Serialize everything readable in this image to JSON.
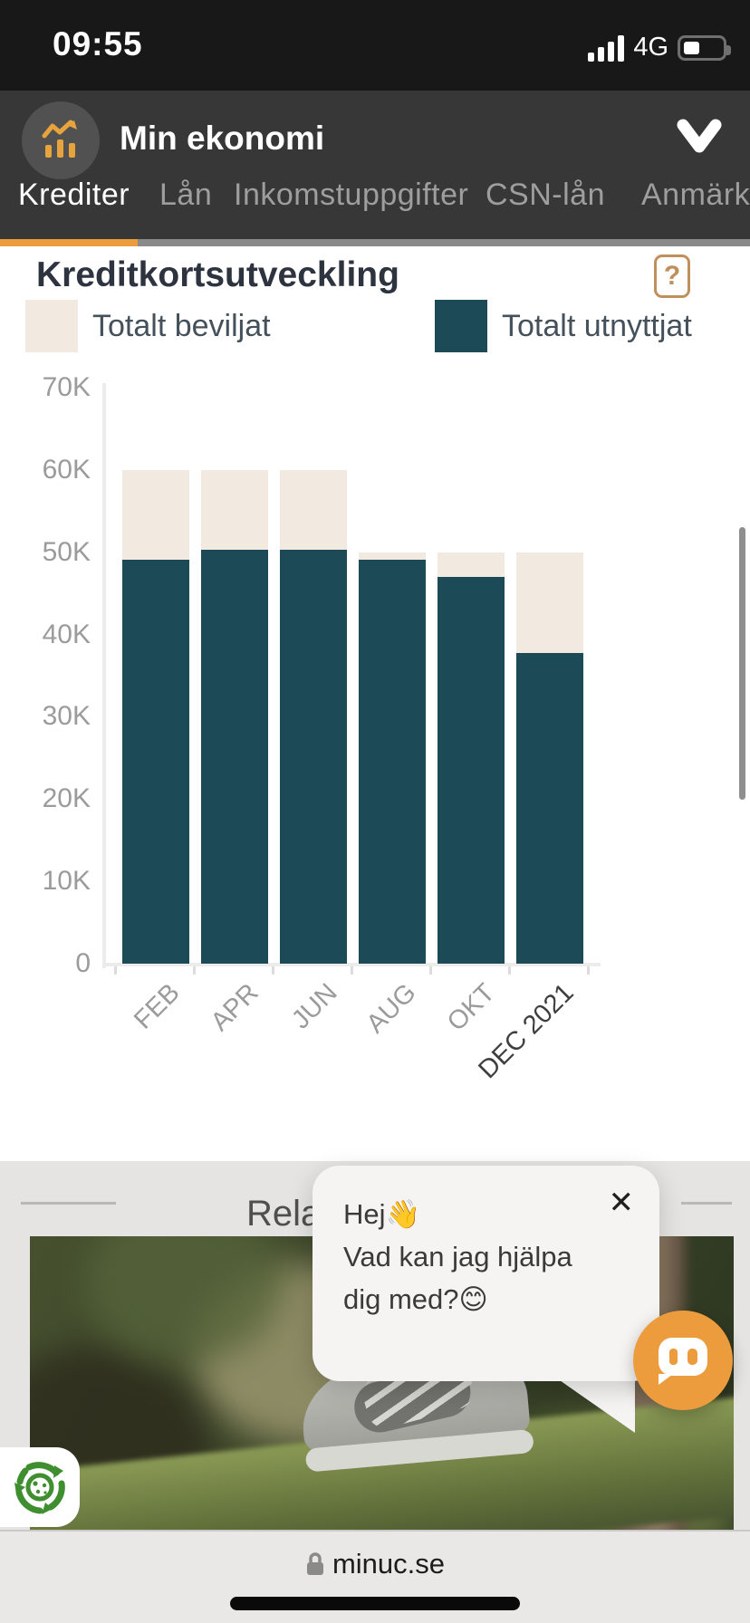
{
  "status_bar": {
    "time": "09:55",
    "network_label": "4G"
  },
  "header": {
    "app_title": "Min ekonomi"
  },
  "tabs": {
    "items": [
      {
        "label": "Krediter",
        "active": true
      },
      {
        "label": "Lån",
        "active": false
      },
      {
        "label": "Inkomstuppgifter",
        "active": false
      },
      {
        "label": "CSN-lån",
        "active": false
      },
      {
        "label": "Anmärkni",
        "active": false
      }
    ]
  },
  "panel": {
    "title": "Kreditkortsutveckling",
    "help_button": "?"
  },
  "chart_data": {
    "type": "bar",
    "overlay": true,
    "title": "Kreditkortsutveckling",
    "categories": [
      "FEB",
      "APR",
      "JUN",
      "AUG",
      "OKT",
      "DEC 2021"
    ],
    "series": [
      {
        "name": "Totalt beviljat",
        "color": "#F2E9E1",
        "values": [
          60000,
          60000,
          60000,
          50000,
          50000,
          50000
        ]
      },
      {
        "name": "Totalt utnyttjat",
        "color": "#1D4A57",
        "values": [
          49100,
          50300,
          50300,
          49100,
          47000,
          37800
        ]
      }
    ],
    "ylim": [
      0,
      70000
    ],
    "yticks": [
      "70K",
      "60K",
      "50K",
      "40K",
      "30K",
      "20K",
      "10K",
      "0"
    ],
    "grid": false,
    "legend_position": "top",
    "highlighted_category": "DEC 2021",
    "xlabel": "",
    "ylabel": ""
  },
  "related_section": {
    "visible_heading": "Relat"
  },
  "chat": {
    "line1": "Hej👋",
    "line2": "Vad kan jag hjälpa dig med?😊",
    "close_label": "✕"
  },
  "browser": {
    "domain": "minuc.se"
  },
  "colors": {
    "accent_orange": "#EC9C3D",
    "bar_teal": "#1D4A57",
    "bar_cream": "#F2E9E1",
    "status_bg": "#181818",
    "header_bg": "#373737",
    "underline_gray": "#8A8A8A",
    "section_gray": "#E5E4E3",
    "help_border": "#BF8F5C"
  }
}
